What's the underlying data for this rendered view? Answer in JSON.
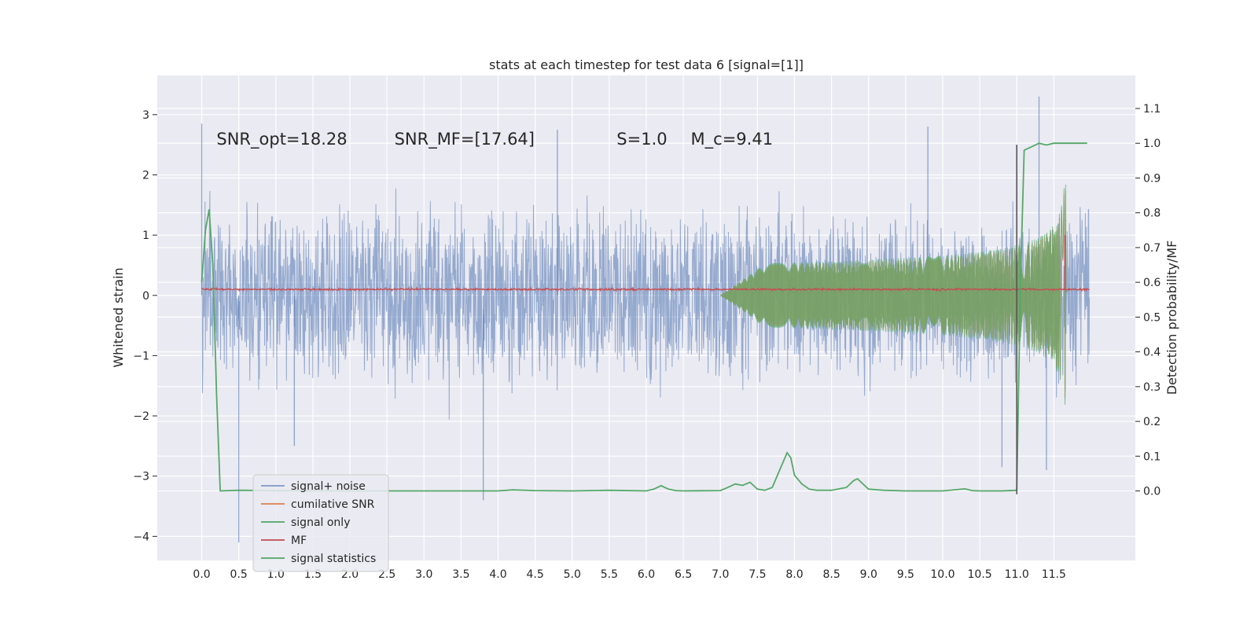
{
  "chart_data": {
    "type": "line",
    "title": "stats at each timestep for test data 6 [signal=[1]]",
    "xlabel": "",
    "ylabel": "Whitened strain",
    "ylabel_right": "Detection probability/MF",
    "xlim": [
      -0.6,
      12.6
    ],
    "ylim": [
      -4.4,
      3.65
    ],
    "ylim_right": [
      -0.2,
      1.195
    ],
    "x_ticks": [
      0.0,
      0.5,
      1.0,
      1.5,
      2.0,
      2.5,
      3.0,
      3.5,
      4.0,
      4.5,
      5.0,
      5.5,
      6.0,
      6.5,
      7.0,
      7.5,
      8.0,
      8.5,
      9.0,
      9.5,
      10.0,
      10.5,
      11.0,
      11.5
    ],
    "x_tick_labels": [
      "0.0",
      "0.5",
      "1.0",
      "1.5",
      "2.0",
      "2.5",
      "3.0",
      "3.5",
      "4.0",
      "4.5",
      "5.0",
      "5.5",
      "6.0",
      "6.5",
      "7.0",
      "7.5",
      "8.0",
      "8.5",
      "9.0",
      "9.5",
      "10.0",
      "10.5",
      "11.0",
      "11.5"
    ],
    "y_ticks": [
      -4,
      -3,
      -2,
      -1,
      0,
      1,
      2,
      3
    ],
    "y_tick_labels": [
      "−4",
      "−3",
      "−2",
      "−1",
      "0",
      "1",
      "2",
      "3"
    ],
    "y_ticks_right": [
      0.0,
      0.1,
      0.2,
      0.3,
      0.4,
      0.5,
      0.6,
      0.7,
      0.8,
      0.9,
      1.0,
      1.1
    ],
    "y_tick_labels_right": [
      "0.0",
      "0.1",
      "0.2",
      "0.3",
      "0.4",
      "0.5",
      "0.6",
      "0.7",
      "0.8",
      "0.9",
      "1.0",
      "1.1"
    ],
    "grid": true,
    "legend_position": "lower-left",
    "annotations": [
      {
        "text": "SNR_opt=18.28",
        "x": 0.2,
        "y": 2.5
      },
      {
        "text": "SNR_MF=[17.64]",
        "x": 2.6,
        "y": 2.5
      },
      {
        "text": "S=1.0",
        "x": 5.6,
        "y": 2.5
      },
      {
        "text": "M_c=9.41",
        "x": 6.6,
        "y": 2.5
      }
    ],
    "vertical_line": {
      "x": 11.0,
      "y_range": [
        -3.3,
        2.5
      ]
    },
    "series": [
      {
        "name": "signal+ noise",
        "kind": "noise",
        "color": "#4c72b0",
        "x_range": [
          0.0,
          11.98
        ],
        "envelope_typical": 1.35,
        "extremes": [
          [
            0.0,
            2.85
          ],
          [
            0.5,
            -4.1
          ],
          [
            1.25,
            -2.5
          ],
          [
            3.8,
            -3.4
          ],
          [
            4.8,
            2.75
          ],
          [
            9.8,
            2.8
          ],
          [
            10.8,
            -2.85
          ],
          [
            11.3,
            3.3
          ],
          [
            11.4,
            -2.9
          ]
        ]
      },
      {
        "name": "cumilative SNR",
        "kind": "chirp",
        "color": "#dd8452",
        "t_start": 7.0,
        "t_peak": 11.65,
        "t_end": 11.68,
        "amp_peak": 1.8
      },
      {
        "name": "signal only",
        "kind": "chirp",
        "color": "#55a868",
        "t_start": 7.0,
        "t_peak": 11.65,
        "t_end": 11.68,
        "amp_peak": 1.9
      },
      {
        "name": "MF",
        "kind": "mf",
        "color": "#c44e52",
        "x_range": [
          0.0,
          11.98
        ],
        "level": 0.1,
        "spike": {
          "x": 11.65,
          "y": 1.0
        }
      },
      {
        "name": "signal statistics",
        "kind": "prob",
        "color": "#55a868",
        "x": [
          0.0,
          0.05,
          0.1,
          0.15,
          0.2,
          0.25,
          0.5,
          1.0,
          2.0,
          3.0,
          4.0,
          4.2,
          4.5,
          5.0,
          5.5,
          6.0,
          6.1,
          6.2,
          6.3,
          6.4,
          6.5,
          7.0,
          7.1,
          7.2,
          7.3,
          7.4,
          7.5,
          7.6,
          7.7,
          7.8,
          7.9,
          7.95,
          8.0,
          8.1,
          8.2,
          8.3,
          8.5,
          8.7,
          8.8,
          8.85,
          8.9,
          9.0,
          9.2,
          9.5,
          10.0,
          10.3,
          10.4,
          10.5,
          10.8,
          11.0,
          11.05,
          11.1,
          11.2,
          11.3,
          11.4,
          11.5,
          11.6,
          11.95
        ],
        "y": [
          0.6,
          0.75,
          0.81,
          0.65,
          0.28,
          0.0,
          0.002,
          0.001,
          0.0,
          0.0,
          0.0,
          0.003,
          0.001,
          0.0,
          0.002,
          0.0,
          0.005,
          0.015,
          0.005,
          0.001,
          0.0,
          0.001,
          0.01,
          0.02,
          0.016,
          0.025,
          0.005,
          0.002,
          0.01,
          0.06,
          0.11,
          0.095,
          0.045,
          0.02,
          0.005,
          0.002,
          0.002,
          0.01,
          0.03,
          0.035,
          0.025,
          0.005,
          0.002,
          0.0,
          0.0,
          0.006,
          0.001,
          0.0,
          0.0,
          0.002,
          0.6,
          0.98,
          0.99,
          1.0,
          0.995,
          1.0,
          1.0,
          1.0
        ]
      }
    ]
  }
}
